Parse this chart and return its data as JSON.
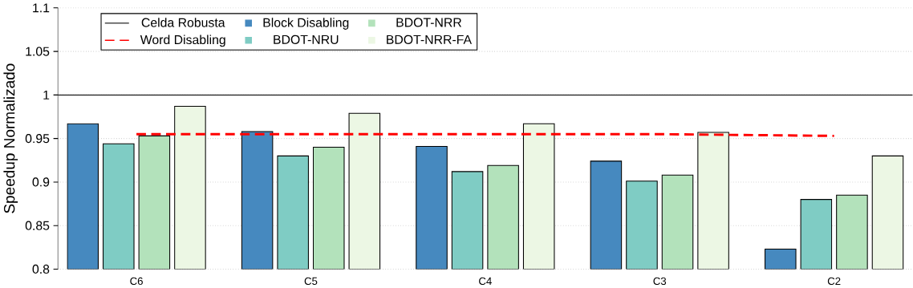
{
  "chart_data": {
    "type": "bar",
    "ylabel": "Speedup Normalizado",
    "categories": [
      "C6",
      "C5",
      "C4",
      "C3",
      "C2"
    ],
    "series": [
      {
        "name": "Word Disabling",
        "type": "line",
        "color": "#ff0000",
        "line_style": "dashed",
        "values": [
          0.955,
          0.955,
          0.955,
          0.955,
          0.953
        ]
      },
      {
        "name": "Block Disabling",
        "color": "#4689bf",
        "values": [
          0.967,
          0.958,
          0.941,
          0.924,
          0.823
        ]
      },
      {
        "name": "BDOT-NRU",
        "color": "#7fccc4",
        "values": [
          0.944,
          0.93,
          0.912,
          0.901,
          0.88
        ]
      },
      {
        "name": "BDOT-NRR",
        "color": "#b3e2bb",
        "values": [
          0.953,
          0.94,
          0.919,
          0.908,
          0.885
        ]
      },
      {
        "name": "BDOT-NRR-FA",
        "color": "#ecf7e4",
        "values": [
          0.987,
          0.979,
          0.967,
          0.957,
          0.93
        ]
      }
    ],
    "ylim": [
      0.8,
      1.1
    ],
    "yticks": [
      0.8,
      0.85,
      0.9,
      0.95,
      1,
      1.05,
      1.1
    ],
    "ref_lines": [
      {
        "axis": "y",
        "value": 1,
        "label": "Celda Robusta",
        "color": "#000000",
        "line_style": "solid"
      }
    ],
    "grid": "y",
    "legend": "top left"
  }
}
